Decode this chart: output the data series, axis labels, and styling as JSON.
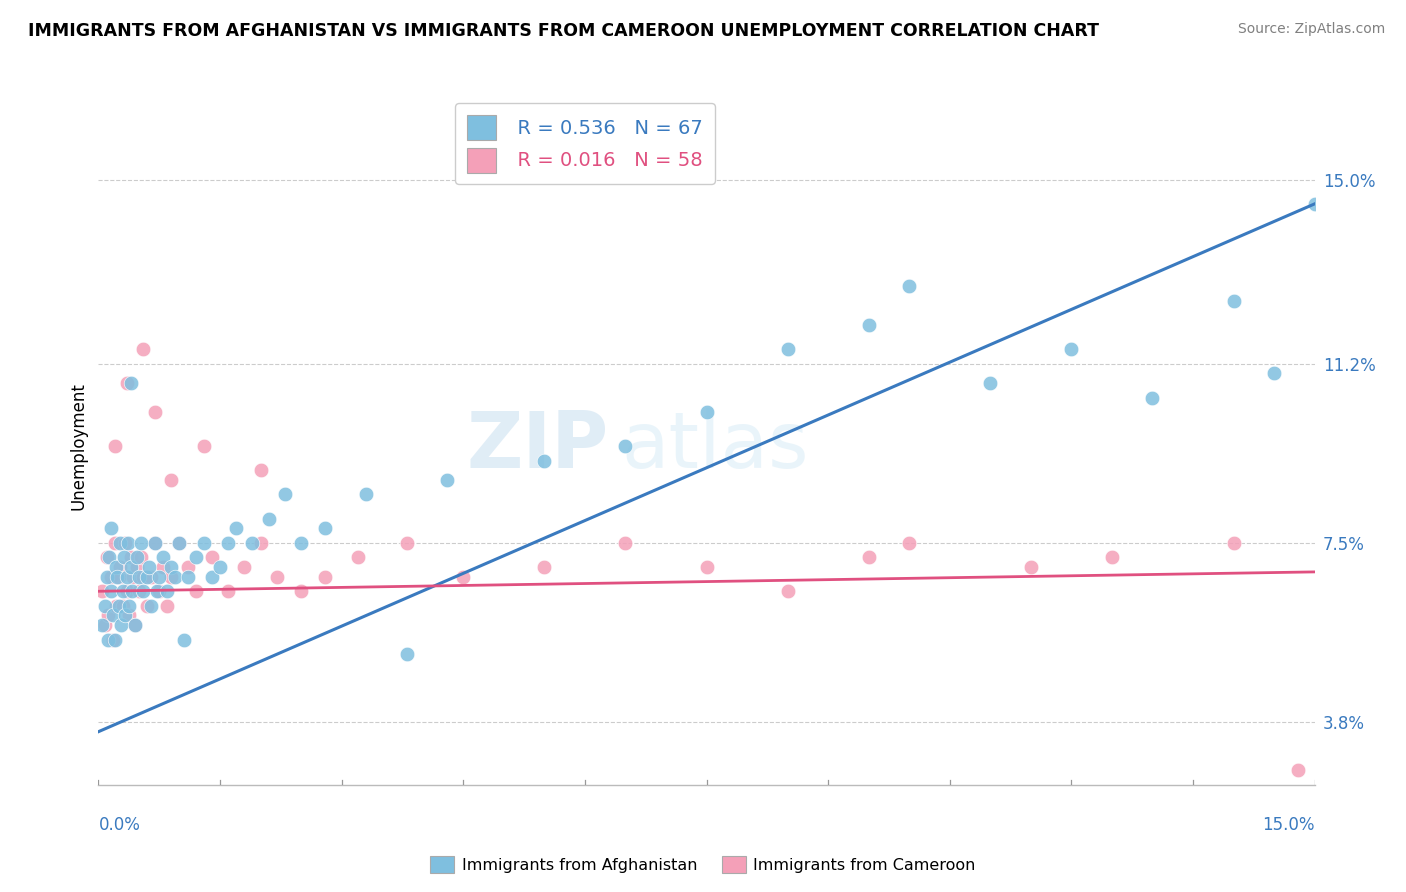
{
  "title": "IMMIGRANTS FROM AFGHANISTAN VS IMMIGRANTS FROM CAMEROON UNEMPLOYMENT CORRELATION CHART",
  "source": "Source: ZipAtlas.com",
  "ylabel": "Unemployment",
  "ytick_values": [
    3.8,
    7.5,
    11.2,
    15.0
  ],
  "xmin": 0.0,
  "xmax": 15.0,
  "ymin": 2.5,
  "ymax": 16.5,
  "legend1_r": "0.536",
  "legend1_n": "67",
  "legend2_r": "0.016",
  "legend2_n": "58",
  "color_afghanistan": "#7fbfdf",
  "color_cameroon": "#f4a0b8",
  "line_color_afghanistan": "#3a7abf",
  "line_color_cameroon": "#e05080",
  "watermark_zip": "ZIP",
  "watermark_atlas": "atlas",
  "af_line_x0": 0.0,
  "af_line_y0": 3.6,
  "af_line_x1": 15.0,
  "af_line_y1": 14.5,
  "cam_line_x0": 0.0,
  "cam_line_y0": 6.5,
  "cam_line_x1": 15.0,
  "cam_line_y1": 6.9,
  "afghanistan_x": [
    0.05,
    0.08,
    0.1,
    0.12,
    0.13,
    0.15,
    0.15,
    0.18,
    0.2,
    0.22,
    0.23,
    0.25,
    0.27,
    0.28,
    0.3,
    0.32,
    0.33,
    0.35,
    0.37,
    0.38,
    0.4,
    0.42,
    0.45,
    0.47,
    0.5,
    0.52,
    0.55,
    0.6,
    0.63,
    0.65,
    0.7,
    0.72,
    0.75,
    0.8,
    0.85,
    0.9,
    0.95,
    1.0,
    1.05,
    1.1,
    1.2,
    1.3,
    1.4,
    1.5,
    1.6,
    1.7,
    1.9,
    2.1,
    2.3,
    2.5,
    2.8,
    3.3,
    3.8,
    4.3,
    5.5,
    6.5,
    7.5,
    8.5,
    9.5,
    10.0,
    11.0,
    12.0,
    13.0,
    14.0,
    14.5,
    15.0,
    0.4
  ],
  "afghanistan_y": [
    5.8,
    6.2,
    6.8,
    5.5,
    7.2,
    6.5,
    7.8,
    6.0,
    5.5,
    7.0,
    6.8,
    6.2,
    7.5,
    5.8,
    6.5,
    7.2,
    6.0,
    6.8,
    7.5,
    6.2,
    7.0,
    6.5,
    5.8,
    7.2,
    6.8,
    7.5,
    6.5,
    6.8,
    7.0,
    6.2,
    7.5,
    6.5,
    6.8,
    7.2,
    6.5,
    7.0,
    6.8,
    7.5,
    5.5,
    6.8,
    7.2,
    7.5,
    6.8,
    7.0,
    7.5,
    7.8,
    7.5,
    8.0,
    8.5,
    7.5,
    7.8,
    8.5,
    5.2,
    8.8,
    9.2,
    9.5,
    10.2,
    11.5,
    12.0,
    12.8,
    10.8,
    11.5,
    10.5,
    12.5,
    11.0,
    14.5,
    10.8
  ],
  "cameroon_x": [
    0.05,
    0.08,
    0.1,
    0.12,
    0.15,
    0.18,
    0.2,
    0.22,
    0.25,
    0.27,
    0.3,
    0.33,
    0.35,
    0.38,
    0.4,
    0.43,
    0.45,
    0.48,
    0.5,
    0.53,
    0.55,
    0.6,
    0.65,
    0.7,
    0.75,
    0.8,
    0.85,
    0.9,
    1.0,
    1.1,
    1.2,
    1.4,
    1.6,
    1.8,
    2.0,
    2.2,
    2.5,
    2.8,
    3.2,
    3.8,
    4.5,
    5.5,
    6.5,
    7.5,
    8.5,
    9.5,
    10.0,
    11.5,
    12.5,
    14.0,
    14.8,
    0.2,
    0.35,
    0.55,
    0.7,
    0.9,
    1.3,
    2.0
  ],
  "cameroon_y": [
    6.5,
    5.8,
    7.2,
    6.0,
    6.8,
    5.5,
    7.5,
    6.2,
    6.8,
    7.0,
    6.2,
    7.5,
    6.5,
    6.0,
    7.2,
    6.8,
    5.8,
    7.0,
    6.5,
    7.2,
    6.8,
    6.2,
    6.8,
    7.5,
    6.5,
    7.0,
    6.2,
    6.8,
    7.5,
    7.0,
    6.5,
    7.2,
    6.5,
    7.0,
    7.5,
    6.8,
    6.5,
    6.8,
    7.2,
    7.5,
    6.8,
    7.0,
    7.5,
    7.0,
    6.5,
    7.2,
    7.5,
    7.0,
    7.2,
    7.5,
    2.8,
    9.5,
    10.8,
    11.5,
    10.2,
    8.8,
    9.5,
    9.0
  ]
}
